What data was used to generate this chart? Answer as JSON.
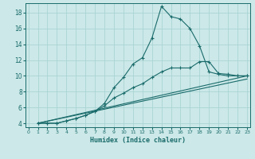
{
  "xlabel": "Humidex (Indice chaleur)",
  "background_color": "#cce8e8",
  "grid_color": "#aad4d4",
  "line_color": "#1a6b6b",
  "xlim_min": 0,
  "xlim_max": 23,
  "ylim_min": 3.5,
  "ylim_max": 19.2,
  "xticks": [
    0,
    1,
    2,
    3,
    4,
    5,
    6,
    7,
    8,
    9,
    10,
    11,
    12,
    13,
    14,
    15,
    16,
    17,
    18,
    19,
    20,
    21,
    22,
    23
  ],
  "yticks": [
    4,
    6,
    8,
    10,
    12,
    14,
    16,
    18
  ],
  "curve1_x": [
    1,
    2,
    3,
    4,
    5,
    6,
    7,
    8,
    9,
    10,
    11,
    12,
    13,
    14,
    15,
    16,
    17,
    18,
    19,
    20,
    21,
    22,
    23
  ],
  "curve1_y": [
    4.0,
    4.0,
    4.0,
    4.3,
    4.6,
    5.0,
    5.5,
    6.5,
    8.5,
    9.8,
    11.5,
    12.3,
    14.8,
    18.8,
    17.5,
    17.2,
    16.0,
    13.8,
    10.5,
    10.2,
    10.0,
    10.0,
    10.0
  ],
  "curve2_x": [
    1,
    2,
    3,
    4,
    5,
    6,
    7,
    8,
    9,
    10,
    11,
    12,
    13,
    14,
    15,
    16,
    17,
    18,
    19,
    20,
    21,
    22,
    23
  ],
  "curve2_y": [
    4.0,
    4.0,
    4.0,
    4.3,
    4.6,
    5.0,
    5.5,
    6.2,
    7.2,
    7.8,
    8.5,
    9.0,
    9.8,
    10.5,
    11.0,
    11.0,
    11.0,
    11.8,
    11.8,
    10.3,
    10.2,
    10.0,
    10.0
  ],
  "line1_x": [
    1,
    23
  ],
  "line1_y": [
    4.0,
    10.0
  ],
  "line2_x": [
    1,
    23
  ],
  "line2_y": [
    4.0,
    9.6
  ]
}
